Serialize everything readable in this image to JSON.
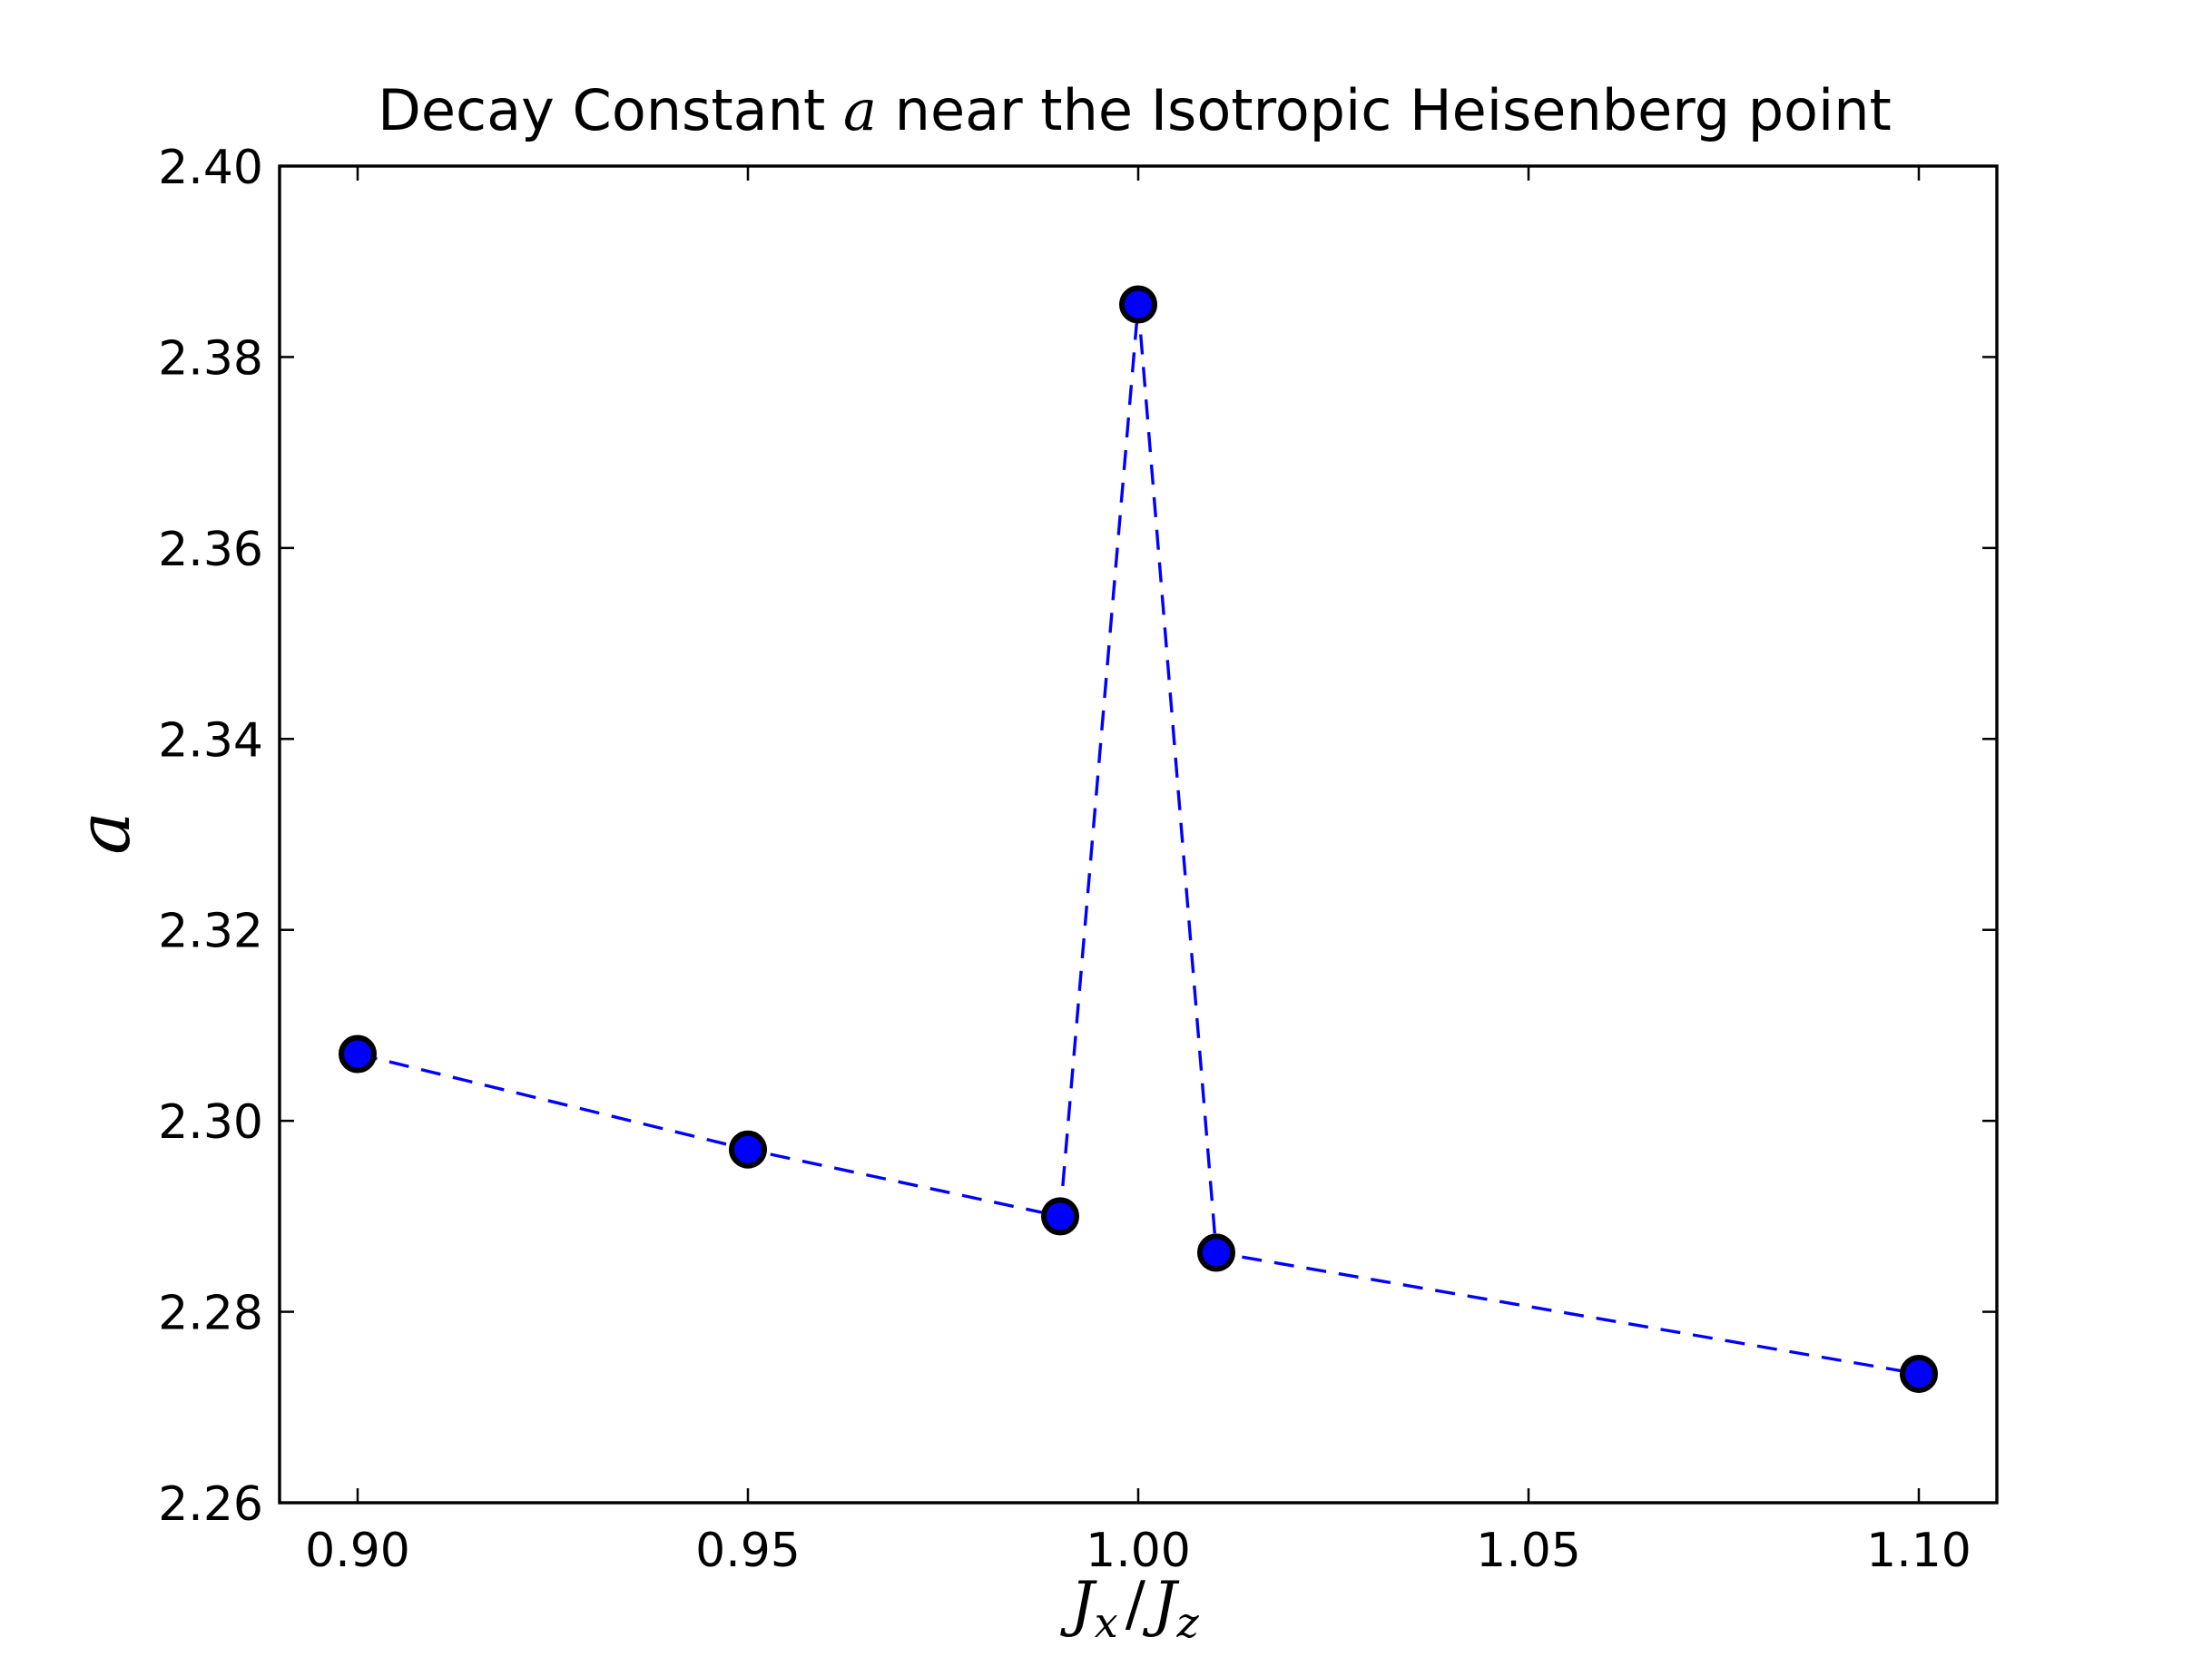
{
  "chart_data": {
    "type": "line",
    "title": {
      "prefix": "Decay Constant ",
      "symbol": "a",
      "suffix": " near the Isotropic Heisenberg point"
    },
    "xlabel": {
      "main": "J",
      "sub1": "x",
      "slash": "/",
      "main2": "J",
      "sub2": "z"
    },
    "ylabel": "a",
    "xlim": [
      0.89,
      1.11
    ],
    "ylim": [
      2.26,
      2.4
    ],
    "x_ticks": [
      "0.90",
      "0.95",
      "1.00",
      "1.05",
      "1.10"
    ],
    "y_ticks": [
      "2.26",
      "2.28",
      "2.30",
      "2.32",
      "2.34",
      "2.36",
      "2.38",
      "2.40"
    ],
    "grid": false,
    "legend": "none",
    "series": [
      {
        "x": [
          0.9,
          0.95,
          0.99,
          1.0,
          1.01,
          1.1
        ],
        "y": [
          2.307,
          2.297,
          2.29,
          2.3855,
          2.2862,
          2.2735
        ],
        "line_style": "dashed",
        "marker": "circle",
        "color": "#0000ff",
        "marker_edge_color": "#000000"
      }
    ]
  }
}
